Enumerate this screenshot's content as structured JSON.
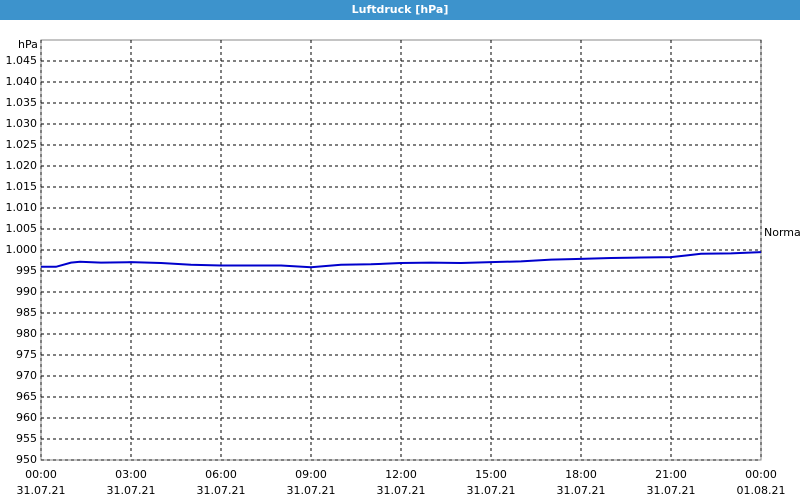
{
  "chart_data": {
    "type": "line",
    "title": "Luftdruck [hPa]",
    "y_label": "hPa",
    "annotation": "Normal",
    "x": [
      0,
      0.5,
      1,
      1.3,
      2,
      3,
      4,
      5,
      6,
      7,
      8,
      9,
      10,
      11,
      12,
      13,
      14,
      15,
      16,
      17,
      18,
      19,
      20,
      21,
      21.5,
      22,
      23,
      24
    ],
    "series": [
      {
        "name": "Luftdruck",
        "color": "#0000cc",
        "values": [
          996,
          996,
          997,
          997.2,
          997,
          997.1,
          996.9,
          996.5,
          996.3,
          996.3,
          996.3,
          995.9,
          996.5,
          996.6,
          996.9,
          997,
          996.9,
          997.1,
          997.3,
          997.7,
          997.9,
          998.1,
          998.2,
          998.3,
          998.7,
          999.1,
          999.2,
          999.5
        ]
      }
    ],
    "xlim": [
      0,
      24
    ],
    "xticks": [
      {
        "value": 0,
        "label": "00:00"
      },
      {
        "value": 3,
        "label": "03:00"
      },
      {
        "value": 6,
        "label": "06:00"
      },
      {
        "value": 9,
        "label": "09:00"
      },
      {
        "value": 12,
        "label": "12:00"
      },
      {
        "value": 15,
        "label": "15:00"
      },
      {
        "value": 18,
        "label": "18:00"
      },
      {
        "value": 21,
        "label": "21:00"
      },
      {
        "value": 24,
        "label": "00:00"
      }
    ],
    "xtick_dates": [
      "31.07.21",
      "31.07.21",
      "31.07.21",
      "31.07.21",
      "31.07.21",
      "31.07.21",
      "31.07.21",
      "31.07.21",
      "01.08.21"
    ],
    "ylim": [
      950,
      1050
    ],
    "yticks": [
      950,
      955,
      960,
      965,
      970,
      975,
      980,
      985,
      990,
      995,
      {
        "value": 1000,
        "label": "1.000"
      },
      {
        "value": 1005,
        "label": "1.005"
      },
      {
        "value": 1010,
        "label": "1.010"
      },
      {
        "value": 1015,
        "label": "1.015"
      },
      {
        "value": 1020,
        "label": "1.020"
      },
      {
        "value": 1025,
        "label": "1.025"
      },
      {
        "value": 1030,
        "label": "1.030"
      },
      {
        "value": 1035,
        "label": "1.035"
      },
      {
        "value": 1040,
        "label": "1.040"
      },
      {
        "value": 1045,
        "label": "1.045"
      }
    ],
    "grid": true
  }
}
